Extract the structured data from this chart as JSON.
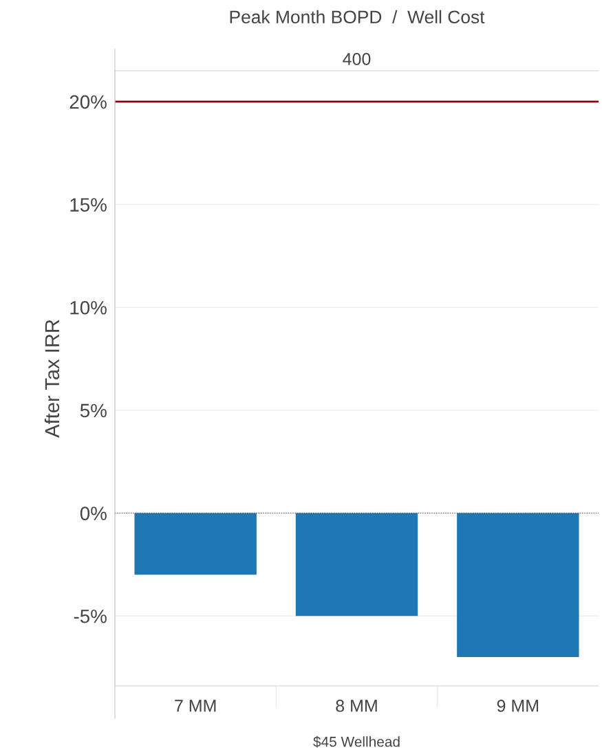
{
  "chart_data": {
    "type": "bar",
    "title": "Peak Month BOPD  /  Well Cost",
    "subtitle": "400",
    "xlabel": "$45 Wellhead",
    "ylabel": "After Tax IRR",
    "categories": [
      "7 MM",
      "8 MM",
      "9 MM"
    ],
    "series": [
      {
        "color": "#1f77b4",
        "values": [
          -3,
          -5,
          -7
        ]
      }
    ],
    "ylim": [
      -8.4,
      21.5
    ],
    "yticks": [
      {
        "value": -5,
        "label": "-5%"
      },
      {
        "value": 0,
        "label": "0%"
      },
      {
        "value": 5,
        "label": "5%"
      },
      {
        "value": 10,
        "label": "10%"
      },
      {
        "value": 15,
        "label": "15%"
      },
      {
        "value": 20,
        "label": "20%"
      }
    ],
    "ref_lines": [
      {
        "axis": "y",
        "value": 20,
        "color": "#8b0000",
        "line_style": "solid"
      },
      {
        "axis": "y",
        "value": 0,
        "color": "#555555",
        "line_style": "dotted"
      }
    ],
    "grid": "y",
    "legend": false
  }
}
